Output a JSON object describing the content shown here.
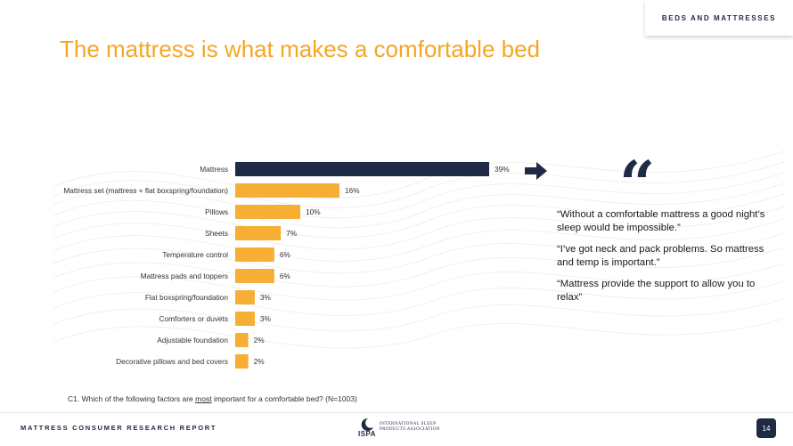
{
  "header": {
    "section": "BEDS AND MATTRESSES",
    "title": "The mattress is what makes a comfortable bed"
  },
  "chart_data": {
    "type": "bar",
    "orientation": "horizontal",
    "categories": [
      "Mattress",
      "Mattress set (mattress + flat boxspring/foundation)",
      "Pillows",
      "Sheets",
      "Temperature control",
      "Mattress pads and toppers",
      "Flat boxspring/foundation",
      "Comforters or duvets",
      "Adjustable foundation",
      "Decorative pillows and bed covers"
    ],
    "values": [
      39,
      16,
      10,
      7,
      6,
      6,
      3,
      3,
      2,
      2
    ],
    "value_labels": [
      "39%",
      "16%",
      "10%",
      "7%",
      "6%",
      "6%",
      "3%",
      "3%",
      "2%",
      "2%"
    ],
    "highlight_color": "#1f2a44",
    "bar_color": "#f7ae35",
    "xlim": [
      0,
      39
    ],
    "grid": false,
    "legend": "none"
  },
  "quotes": [
    "“Without a comfortable mattress a good night’s sleep would be impossible.”",
    "“I’ve got neck and pack problems. So mattress and temp is important.”",
    "“Mattress provide the support to allow you to relax”"
  ],
  "quote_symbol": "“",
  "footnote": {
    "before": "C1. Which of the following factors are ",
    "emphasis": "most",
    "after": " important for a comfortable bed? (N=1003)"
  },
  "footer": {
    "report": "MATTRESS CONSUMER RESEARCH REPORT",
    "logo_name": "ISPA",
    "logo_line1": "INTERNATIONAL SLEEP",
    "logo_line2": "PRODUCTS ASSOCIATION",
    "page": "14"
  },
  "icons": {
    "arrow": "arrow-right-icon",
    "quote": "quote-icon",
    "logo": "ispa-moon-logo-icon"
  },
  "colors": {
    "accent": "#f5a623",
    "navy": "#1f2a44"
  }
}
